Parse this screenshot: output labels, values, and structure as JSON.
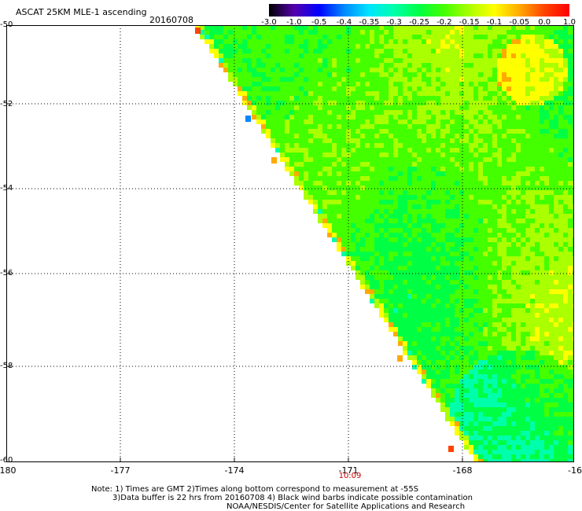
{
  "header": {
    "title": "ASCAT 25KM MLE-1 ascending",
    "date": "20160708"
  },
  "colorbar": {
    "labels": [
      "-3.0",
      "-1.0",
      "-0.5",
      "-0.4",
      "-0.35",
      "-0.3",
      "-0.25",
      "-0.2",
      "-0.15",
      "-0.1",
      "-0.05",
      "0.0",
      "1.0"
    ],
    "colors": [
      "#000000",
      "#5500aa",
      "#0000ff",
      "#0088ff",
      "#00e5ff",
      "#00ffaa",
      "#00ff44",
      "#44ff00",
      "#aaff00",
      "#ffff00",
      "#ffaa00",
      "#ff4400",
      "#ff0000"
    ]
  },
  "axes": {
    "lat_labels": [
      "-50",
      "-52",
      "-54",
      "-56",
      "-58",
      "-60"
    ],
    "lon_labels": [
      "-180",
      "-177",
      "-174",
      "-171",
      "-168",
      "-16"
    ],
    "time_label": "10:09"
  },
  "notes": {
    "line1": "Note: 1) Times are GMT 2)Times along bottom correspond to measurement at -55S",
    "line2": "3)Data buffer is 22 hrs from 20160708 4) Black wind barbs indicate possible contamination",
    "line3": "NOAA/NESDIS/Center for Satellite Applications and Research"
  }
}
